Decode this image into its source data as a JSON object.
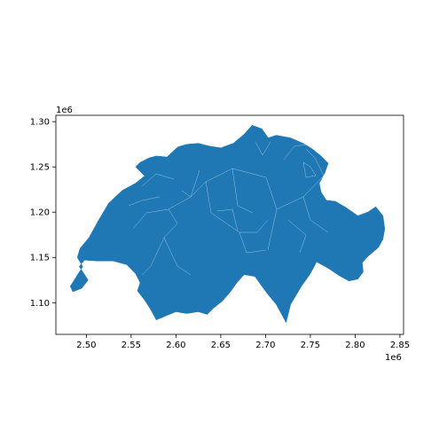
{
  "map": {
    "fill_color": "#1f77b4",
    "border_color": "#ffffff",
    "x_offset_label": "1e6",
    "y_offset_label": "1e6"
  },
  "chart_data": {
    "type": "map",
    "title": "",
    "xlabel": "",
    "ylabel": "",
    "xlim": [
      2.466,
      2.854
    ],
    "ylim": [
      1.065,
      1.307
    ],
    "x_ticks": [
      "2.50",
      "2.55",
      "2.60",
      "2.65",
      "2.70",
      "2.75",
      "2.80",
      "2.85"
    ],
    "y_ticks": [
      "1.10",
      "1.15",
      "1.20",
      "1.25",
      "1.30"
    ],
    "x_scale_multiplier": "1e6",
    "y_scale_multiplier": "1e6",
    "grid": false,
    "legend": "none",
    "feature": "Switzerland cantons (filled polygons, single color)",
    "outline": [
      [
        2.485,
        1.112
      ],
      [
        2.495,
        1.116
      ],
      [
        2.502,
        1.125
      ],
      [
        2.492,
        1.14
      ],
      [
        2.498,
        1.147
      ],
      [
        2.512,
        1.146
      ],
      [
        2.53,
        1.146
      ],
      [
        2.545,
        1.142
      ],
      [
        2.555,
        1.132
      ],
      [
        2.56,
        1.122
      ],
      [
        2.557,
        1.113
      ],
      [
        2.565,
        1.103
      ],
      [
        2.572,
        1.092
      ],
      [
        2.578,
        1.081
      ],
      [
        2.59,
        1.086
      ],
      [
        2.6,
        1.09
      ],
      [
        2.612,
        1.088
      ],
      [
        2.625,
        1.09
      ],
      [
        2.635,
        1.087
      ],
      [
        2.642,
        1.094
      ],
      [
        2.652,
        1.102
      ],
      [
        2.66,
        1.111
      ],
      [
        2.668,
        1.122
      ],
      [
        2.676,
        1.131
      ],
      [
        2.688,
        1.129
      ],
      [
        2.702,
        1.11
      ],
      [
        2.712,
        1.098
      ],
      [
        2.718,
        1.087
      ],
      [
        2.723,
        1.078
      ],
      [
        2.728,
        1.098
      ],
      [
        2.74,
        1.118
      ],
      [
        2.75,
        1.132
      ],
      [
        2.757,
        1.145
      ],
      [
        2.77,
        1.138
      ],
      [
        2.782,
        1.13
      ],
      [
        2.793,
        1.124
      ],
      [
        2.803,
        1.126
      ],
      [
        2.809,
        1.134
      ],
      [
        2.808,
        1.144
      ],
      [
        2.813,
        1.15
      ],
      [
        2.826,
        1.161
      ],
      [
        2.831,
        1.17
      ],
      [
        2.833,
        1.182
      ],
      [
        2.831,
        1.196
      ],
      [
        2.823,
        1.206
      ],
      [
        2.814,
        1.2
      ],
      [
        2.803,
        1.196
      ],
      [
        2.79,
        1.205
      ],
      [
        2.778,
        1.212
      ],
      [
        2.768,
        1.213
      ],
      [
        2.762,
        1.222
      ],
      [
        2.76,
        1.232
      ],
      [
        2.766,
        1.243
      ],
      [
        2.77,
        1.254
      ],
      [
        2.762,
        1.262
      ],
      [
        2.752,
        1.27
      ],
      [
        2.742,
        1.276
      ],
      [
        2.728,
        1.282
      ],
      [
        2.712,
        1.285
      ],
      [
        2.703,
        1.282
      ],
      [
        2.696,
        1.292
      ],
      [
        2.685,
        1.296
      ],
      [
        2.676,
        1.286
      ],
      [
        2.664,
        1.276
      ],
      [
        2.65,
        1.271
      ],
      [
        2.637,
        1.273
      ],
      [
        2.625,
        1.276
      ],
      [
        2.612,
        1.275
      ],
      [
        2.602,
        1.272
      ],
      [
        2.59,
        1.261
      ],
      [
        2.578,
        1.262
      ],
      [
        2.57,
        1.26
      ],
      [
        2.56,
        1.255
      ],
      [
        2.555,
        1.25
      ],
      [
        2.565,
        1.24
      ],
      [
        2.555,
        1.232
      ],
      [
        2.54,
        1.224
      ],
      [
        2.525,
        1.21
      ],
      [
        2.513,
        1.19
      ],
      [
        2.503,
        1.172
      ],
      [
        2.493,
        1.16
      ],
      [
        2.49,
        1.15
      ],
      [
        2.496,
        1.14
      ],
      [
        2.482,
        1.118
      ]
    ]
  }
}
